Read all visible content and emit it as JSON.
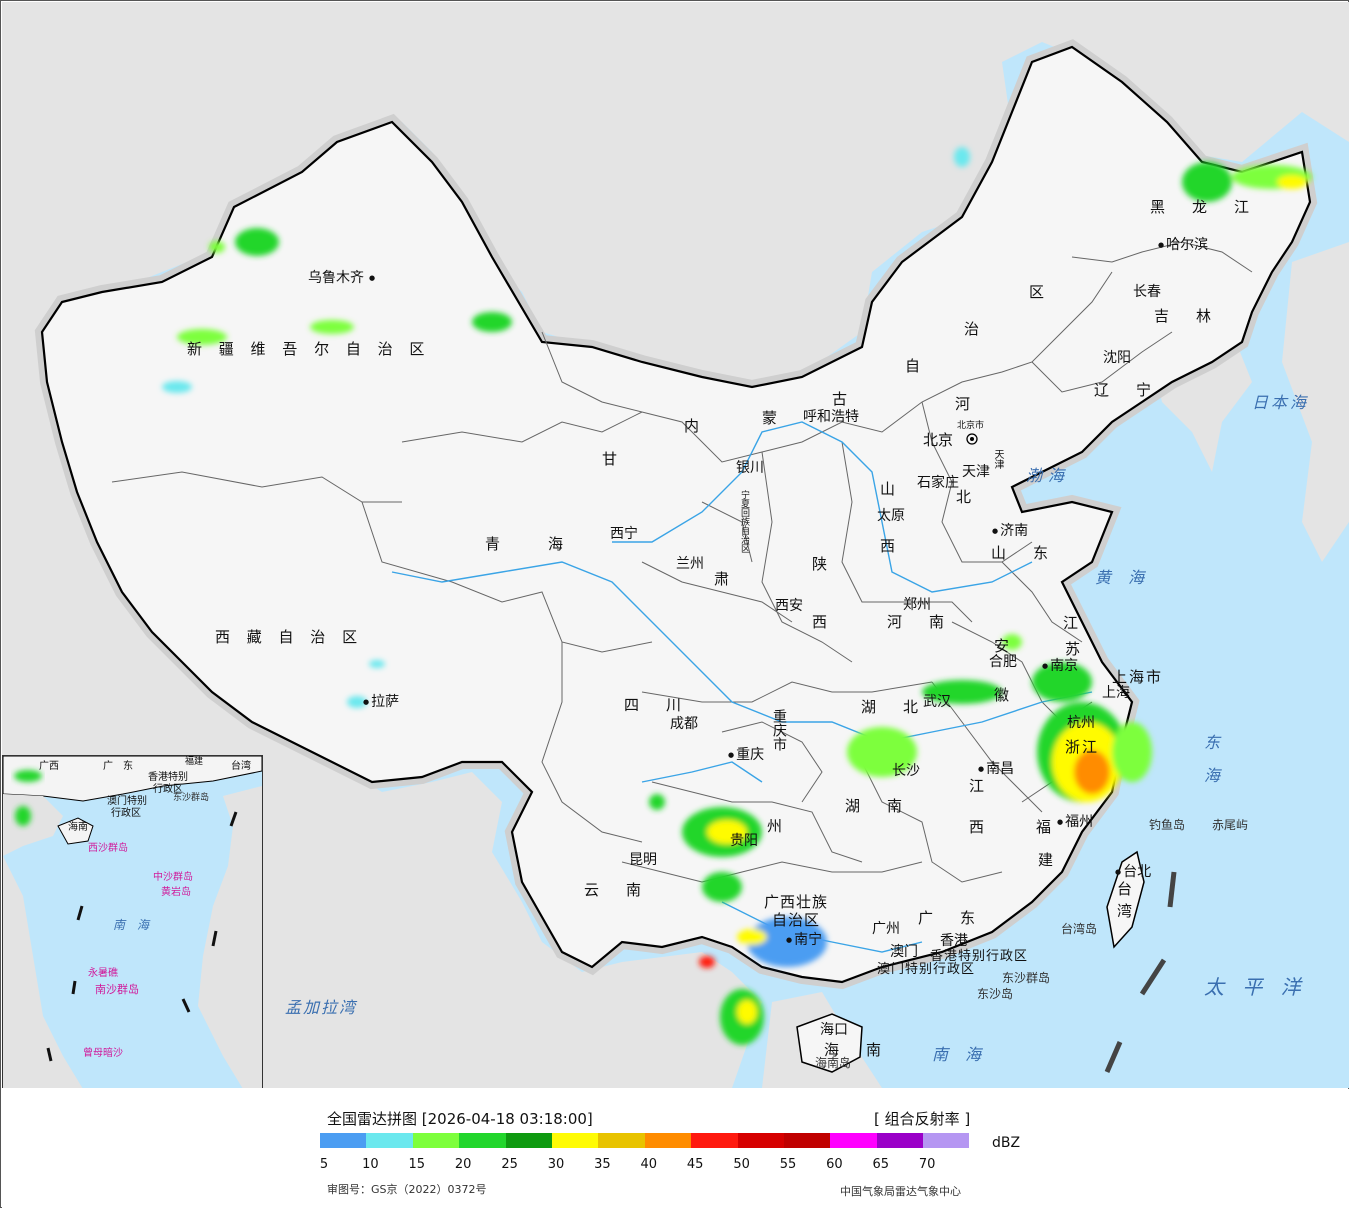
{
  "legend": {
    "title": "全国雷达拼图 [2026-04-18 03:18:00]",
    "product": "[ 组合反射率 ]",
    "unit": "dBZ",
    "approval": "审图号：GS京（2022）0372号",
    "credit": "中国气象局雷达气象中心",
    "colors": [
      "#4b9df2",
      "#6be8ee",
      "#7dff3c",
      "#22d62c",
      "#0e9a10",
      "#fffb05",
      "#e8c300",
      "#ff8c00",
      "#ff1a0f",
      "#d60000",
      "#c00000",
      "#ff00ff",
      "#9a00c8",
      "#b596f2"
    ],
    "ticks": [
      "5",
      "10",
      "15",
      "20",
      "25",
      "30",
      "35",
      "40",
      "45",
      "50",
      "55",
      "60",
      "65",
      "70"
    ]
  },
  "colors": {
    "ocean": "#bfe6fb",
    "land_china": "#f3f3f3",
    "land_other": "#e3e3e3",
    "border": "#000000",
    "province_border": "#555555"
  },
  "provinces": {
    "xinjiang": "新 疆 维 吾 尔 自 治 区",
    "xizang": "西 藏 自 治 区",
    "qinghai": "青　　海",
    "gansu": "甘",
    "neimenggu_1": "内",
    "neimenggu_2": "蒙",
    "neimenggu_3": "古",
    "neimenggu_4": "自",
    "neimenggu_5": "治",
    "neimenggu_6": "区",
    "heilongjiang": "黑　龙　江",
    "jilin": "吉　林",
    "liaoning": "辽　宁",
    "hebei_1": "河",
    "hebei_2": "北",
    "shanxi": "山",
    "shanxi_2": "西",
    "shandong": "山　东",
    "henan": "河　南",
    "shaanxi_1": "陕",
    "shaanxi_2": "西",
    "sichuan": "四　川",
    "chongqing": "重庆市",
    "hubei": "湖　北",
    "hunan": "湖　南",
    "anhui_1": "安",
    "anhui_2": "徽",
    "jiangsu_1": "江",
    "jiangsu_2": "苏",
    "zhejiang": "浙江",
    "jiangxi_1": "江",
    "jiangxi_2": "西",
    "fujian_1": "福",
    "fujian_2": "建",
    "guizhou": "州",
    "yunnan": "云　南",
    "guangxi_1": "广西壮族",
    "guangxi_2": "自治区",
    "guangdong": "广　东",
    "hainan": "海　南",
    "taiwan_1": "台",
    "taiwan_2": "湾",
    "shanghai": "上海市",
    "ningxia": "宁夏回族自治区",
    "tianjin": "天津",
    "beijing": "北京市",
    "hk": "香港特别行政区",
    "macau": "澳门特别行政区",
    "gansu_2": "肃"
  },
  "cities": {
    "urumqi": "乌鲁木齐",
    "lhasa": "拉萨",
    "xining": "西宁",
    "lanzhou": "兰州",
    "yinchuan": "银川",
    "hohhot": "呼和浩特",
    "beijing": "北京",
    "tianjin": "天津",
    "shijiazhuang": "石家庄",
    "taiyuan": "太原",
    "jinan": "济南",
    "zhengzhou": "郑州",
    "xian": "西安",
    "chengdu": "成都",
    "chongqing": "重庆",
    "wuhan": "武汉",
    "hefei": "合肥",
    "nanjing": "南京",
    "shanghai": "上海",
    "hangzhou": "杭州",
    "nanchang": "南昌",
    "changsha": "长沙",
    "guiyang": "贵阳",
    "kunming": "昆明",
    "nanning": "南宁",
    "guangzhou": "广州",
    "fuzhou": "福州",
    "taibei": "台北",
    "haikou": "海口",
    "harbin": "哈尔滨",
    "changchun": "长春",
    "shenyang": "沈阳",
    "macau": "澳门",
    "hongkong": "香港"
  },
  "seas": {
    "bohai": "渤海",
    "huanghai": "黄 海",
    "donghai": "东 海",
    "nanhai": "南 海",
    "riben": "日本海",
    "taiping": "太 平 洋",
    "mengjiala": "孟加拉湾"
  },
  "islands": {
    "diaoyu": "钓鱼岛",
    "chiwei": "赤尾屿",
    "dongsha": "东沙岛",
    "dongsha_group": "东沙群岛",
    "taiwan_island": "台湾岛",
    "hainan_island": "海南岛"
  },
  "inset": {
    "guangdong": "广　东",
    "fujian": "福建",
    "taiwan": "台湾",
    "guangxi": "广西",
    "hk": "香港特别",
    "hk2": "行政区",
    "macau": "澳门特别",
    "macau2": "行政区",
    "dongsha": "东沙群岛",
    "hainan": "海南",
    "xisha": "西沙群岛",
    "zhongsha": "中沙群岛",
    "huangyan": "黄岩岛",
    "nanhai": "南　海",
    "yongshu": "永暑礁",
    "nansha": "南沙群岛",
    "zengmu": "曾母暗沙"
  }
}
